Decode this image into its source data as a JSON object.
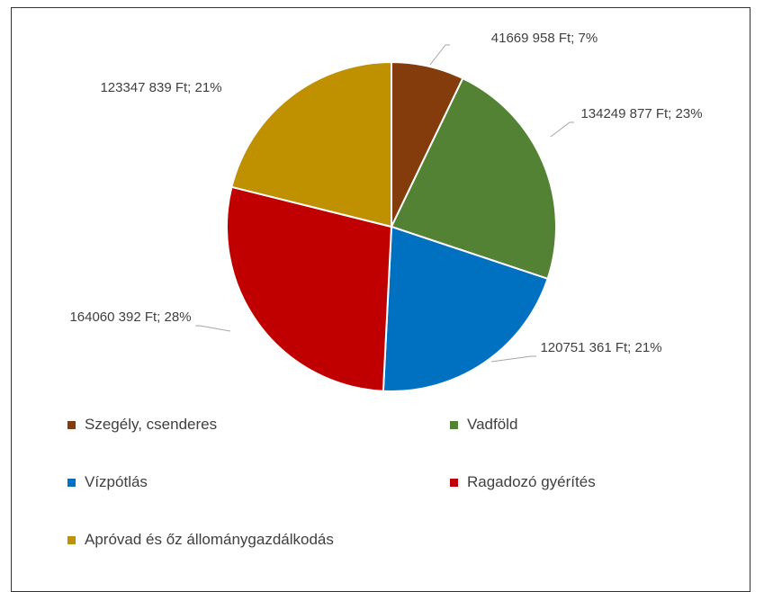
{
  "chart_data": {
    "type": "pie",
    "categories": [
      "Szegély, csenderes",
      "Vadföld",
      "Vízpótlás",
      "Ragadozó gyérítés",
      "Apróvad és őz állománygazdálkodás"
    ],
    "values": [
      41669958,
      134249877,
      120751361,
      164060392,
      123347839
    ],
    "value_labels": [
      "41669 958 Ft; 7%",
      "134249 877 Ft; 23%",
      "120751 361 Ft; 21%",
      "164060 392 Ft; 28%",
      "123347 839 Ft; 21%"
    ],
    "colors": [
      "#843c0c",
      "#548235",
      "#0070c0",
      "#c00000",
      "#bf9000"
    ],
    "legend": "bottom"
  }
}
